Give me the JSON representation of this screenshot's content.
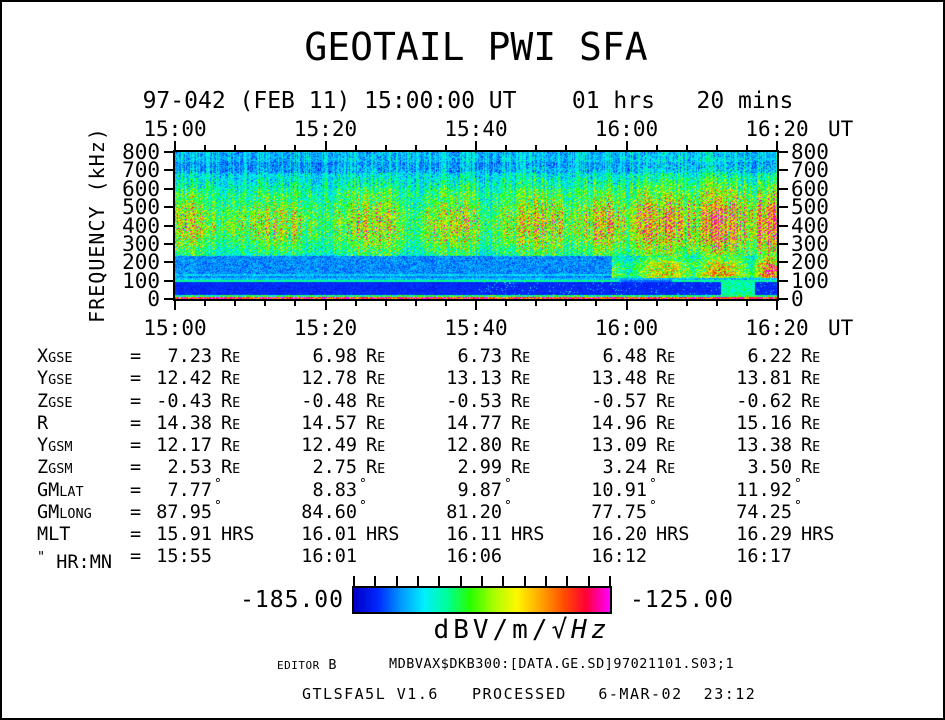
{
  "window": {
    "background": "#ffffff",
    "border_color": "#000000",
    "text_color": "#000000"
  },
  "header": {
    "title": "GEOTAIL PWI SFA",
    "subtitle": "97-042 (FEB 11) 15:00:00 UT    01 hrs   20 mins"
  },
  "plot": {
    "x_tick_labels": [
      "15:00",
      "15:20",
      "15:40",
      "16:00",
      "16:20"
    ],
    "x_axis_unit": "UT",
    "y_tick_labels": [
      "800",
      "700",
      "600",
      "500",
      "400",
      "300",
      "200",
      "100",
      "0"
    ],
    "y_axis_label": "FREQUENCY (kHz)",
    "x_total_minutes": 80,
    "x_major_step_minutes": 20,
    "x_minor_step_minutes": 4
  },
  "chart_data": {
    "type": "heatmap",
    "title": "GEOTAIL PWI SFA",
    "date_label": "97-042 (FEB 11)",
    "start_time_ut": "15:00:00",
    "duration": "01 hrs 20 mins",
    "x": {
      "unit": "UT",
      "tick_labels": [
        "15:00",
        "15:20",
        "15:40",
        "16:00",
        "16:20"
      ],
      "range_minutes": [
        0,
        80
      ],
      "minor_tick_minutes": 4
    },
    "y": {
      "label": "FREQUENCY (kHz)",
      "ticks": [
        0,
        100,
        200,
        300,
        400,
        500,
        600,
        700,
        800
      ],
      "range": [
        0,
        800
      ]
    },
    "z": {
      "label": "dBV/m/√Hz",
      "min": -185.0,
      "max": -125.0
    },
    "palette": [
      "#0000c8",
      "#0028ff",
      "#0098ff",
      "#00f0ff",
      "#00ff98",
      "#28ff00",
      "#a8ff00",
      "#fff800",
      "#ffa800",
      "#ff5000",
      "#ff0038",
      "#ff00ff"
    ],
    "features": {
      "emission_band_khz": [
        250,
        650
      ],
      "arc_peak_minutes": [
        1,
        13,
        26,
        37,
        48,
        57,
        65,
        72.5,
        79
      ],
      "arc_peak_db": [
        -149,
        -150,
        -147,
        -149,
        -147,
        -146,
        -138,
        -135,
        -125
      ],
      "arc_width_minutes": [
        5,
        5.5,
        5,
        4.5,
        5,
        4,
        4.5,
        4,
        2
      ],
      "arc_sigma_khz": [
        140,
        140,
        155,
        145,
        155,
        150,
        160,
        165,
        150
      ],
      "quiet_band_khz": [
        30,
        90
      ],
      "narrowband_line_khz": 100,
      "intense_line_khz": 0,
      "notes": "Repeating emission arcs 250-650 kHz that intensify after 16:00 UT with orange-red cores 300-500 kHz and a magenta burst near 16:19; dark quiet band 30-90 kHz; narrow cyan line near 100 kHz; intense multicolor broadband line at 0 kHz."
    }
  },
  "ephemeris": {
    "eq": "=",
    "deg_symbol": "°",
    "columns": [
      "15:00",
      "15:20",
      "15:40",
      "16:00",
      "16:20"
    ],
    "rows": [
      {
        "name": "XGSE",
        "label_pre": "",
        "label_main": "X",
        "label_sub": "GSE",
        "unit": "RE",
        "values": [
          "7.23",
          "6.98",
          "6.73",
          "6.48",
          "6.22"
        ]
      },
      {
        "name": "YGSE",
        "label_pre": "",
        "label_main": "Y",
        "label_sub": "GSE",
        "unit": "RE",
        "values": [
          "12.42",
          "12.78",
          "13.13",
          "13.48",
          "13.81"
        ]
      },
      {
        "name": "ZGSE",
        "label_pre": "",
        "label_main": "Z",
        "label_sub": "GSE",
        "unit": "RE",
        "values": [
          "-0.43",
          "-0.48",
          "-0.53",
          "-0.57",
          "-0.62"
        ]
      },
      {
        "name": "R",
        "label_pre": "",
        "label_main": "R",
        "label_sub": "",
        "unit": "RE",
        "values": [
          "14.38",
          "14.57",
          "14.77",
          "14.96",
          "15.16"
        ]
      },
      {
        "name": "YGSM",
        "label_pre": "",
        "label_main": "Y",
        "label_sub": "GSM",
        "unit": "RE",
        "values": [
          "12.17",
          "12.49",
          "12.80",
          "13.09",
          "13.38"
        ]
      },
      {
        "name": "ZGSM",
        "label_pre": "",
        "label_main": "Z",
        "label_sub": "GSM",
        "unit": "RE",
        "values": [
          "2.53",
          "2.75",
          "2.99",
          "3.24",
          "3.50"
        ]
      },
      {
        "name": "GMLAT",
        "label_pre": "",
        "label_main": "GM",
        "label_sub": "LAT",
        "unit": "deg",
        "values": [
          "7.77",
          "8.83",
          "9.87",
          "10.91",
          "11.92"
        ]
      },
      {
        "name": "GMLONG",
        "label_pre": "",
        "label_main": "GM",
        "label_sub": "LONG",
        "unit": "deg",
        "values": [
          "87.95",
          "84.60",
          "81.20",
          "77.75",
          "74.25"
        ]
      },
      {
        "name": "MLT",
        "label_pre": "",
        "label_main": "MLT",
        "label_sub": "",
        "unit": "HRS",
        "values": [
          "15.91",
          "16.01",
          "16.11",
          "16.20",
          "16.29"
        ]
      },
      {
        "name": "HRMN",
        "label_pre": "\"",
        "label_main": " HR:MN",
        "label_sub": "",
        "unit": "",
        "values": [
          "15:55",
          "16:01",
          "16:06",
          "16:12",
          "16:17"
        ]
      }
    ]
  },
  "colorbar": {
    "min_label": "-185.00",
    "max_label": "-125.00",
    "unit_prefix": "dBV/m/",
    "unit_italic": "√Hz",
    "tick_count": 13
  },
  "footer": {
    "editor_small": "EDITOR",
    "editor_rest": " B",
    "file": "MDBVAX$DKB300:[DATA.GE.SD]97021101.S03;1",
    "program": "GTLSFA5L V1.6",
    "processed": "PROCESSED   6-MAR-02  23:12"
  }
}
